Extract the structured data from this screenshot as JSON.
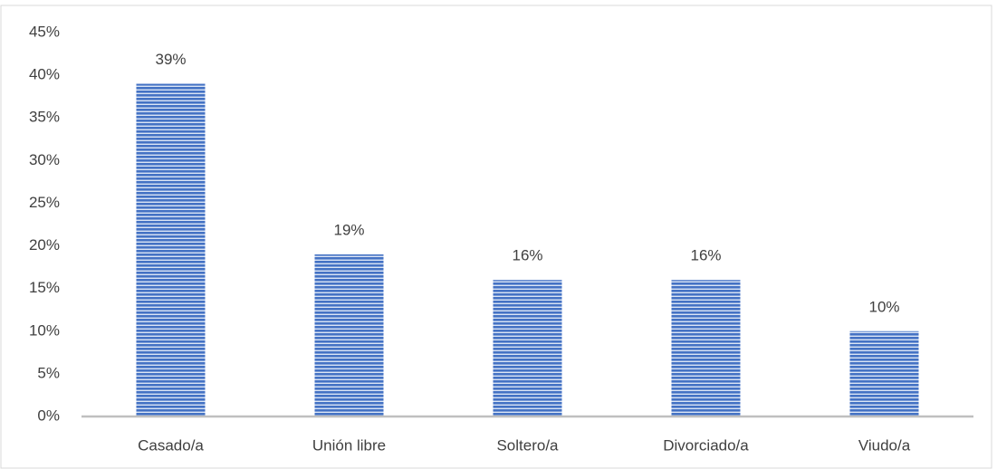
{
  "chart_data": {
    "type": "bar",
    "categories": [
      "Casado/a",
      "Unión libre",
      "Soltero/a",
      "Divorciado/a",
      "Viudo/a"
    ],
    "values": [
      39,
      19,
      16,
      16,
      10
    ],
    "value_labels": [
      "39%",
      "19%",
      "16%",
      "16%",
      "10%"
    ],
    "color": "#4472c4",
    "ylim": [
      0,
      45
    ],
    "yticks": [
      {
        "value": 0,
        "label": "0%"
      },
      {
        "value": 5,
        "label": "5%"
      },
      {
        "value": 10,
        "label": "10%"
      },
      {
        "value": 15,
        "label": "15%"
      },
      {
        "value": 20,
        "label": "20%"
      },
      {
        "value": 25,
        "label": "25%"
      },
      {
        "value": 30,
        "label": "30%"
      },
      {
        "value": 35,
        "label": "35%"
      },
      {
        "value": 40,
        "label": "40%"
      },
      {
        "value": 45,
        "label": "45%"
      }
    ],
    "grid": false
  }
}
